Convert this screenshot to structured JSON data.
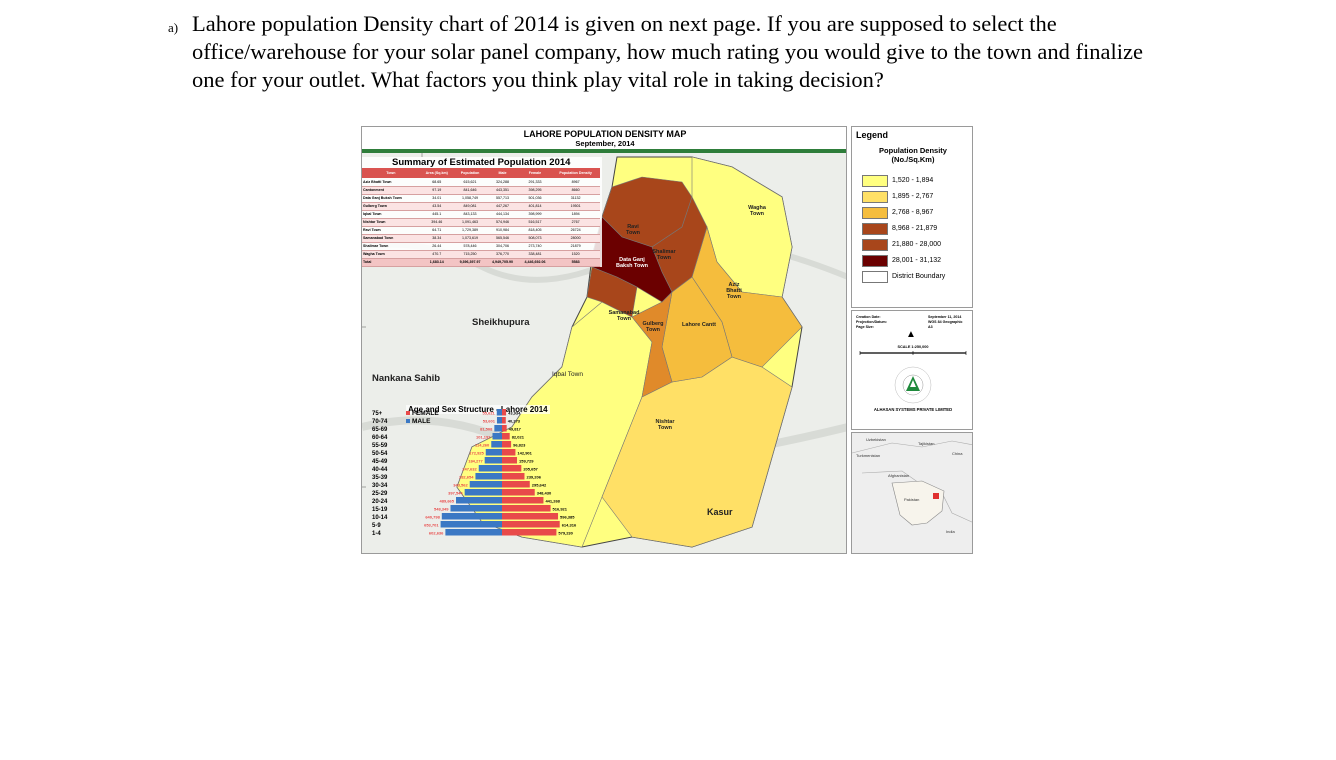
{
  "question": {
    "marker": "a)",
    "lines": [
      "Lahore population Density chart of 2014 is given on next page. If you are supposed to select the",
      "office/warehouse for your solar panel company, how much rating you would give to the town and finalize",
      "one for your outlet. What factors you think play vital role in taking decision?"
    ]
  },
  "map": {
    "title": "LAHORE POPULATION DENSITY MAP",
    "subtitle": "September, 2014",
    "districts": {
      "sheikhupura": "Sheikhupura",
      "nankana": "Nankana Sahib",
      "kasur": "Kasur"
    },
    "towns": {
      "ravi": "Ravi Town",
      "shalimar": "Shalimar Town",
      "wagha": "Wagha Town",
      "aziz_bhatti": "Aziz Bhatti Town",
      "data_ganj": "Data Ganj Baksh Town",
      "samanabad": "Samanabad Town",
      "gulberg": "Gulberg Town",
      "cantt": "Lahore Cantt",
      "iqbal": "Iqbal Town",
      "nishtar": "Nishtar Town"
    },
    "fill_colors": {
      "c1": "#ffff80",
      "c2": "#ffe066",
      "c3": "#f5bd3d",
      "c4": "#e08a2a",
      "c5": "#a8461b",
      "c6": "#6b0000"
    }
  },
  "summary": {
    "title": "Summary of Estimated Population 2014",
    "headers": [
      "Town",
      "Area (Sq.km)",
      "Population",
      "Male",
      "Female",
      "Population Density"
    ],
    "rows": [
      [
        "Aziz Bhatti Town",
        "68.65",
        "615,621",
        "324,288",
        "291,333",
        "8967"
      ],
      [
        "Cantonment",
        "97.19",
        "841,646",
        "443,351",
        "398,295",
        "8660"
      ],
      [
        "Data Ganj Buksh Town",
        "34.01",
        "1,058,749",
        "557,713",
        "501,036",
        "31132"
      ],
      [
        "Gulberg Town",
        "43.54",
        "849,081",
        "447,267",
        "401,814",
        "19501"
      ],
      [
        "Iqbal Town",
        "445.1",
        "843,133",
        "444,134",
        "398,999",
        "1894"
      ],
      [
        "Nishtar Town",
        "394.46",
        "1,091,463",
        "574,946",
        "516,517",
        "2767"
      ],
      [
        "Ravi Town",
        "64.71",
        "1,729,389",
        "910,984",
        "818,405",
        "26724"
      ],
      [
        "Samanabad Town",
        "38.34",
        "1,073,619",
        "565,546",
        "508,073",
        "28000"
      ],
      [
        "Shalimar Town",
        "26.44",
        "578,446",
        "304,706",
        "273,740",
        "21879"
      ],
      [
        "Wagha Town",
        "470.7",
        "715,250",
        "376,770",
        "338,481",
        "1520"
      ]
    ],
    "total": [
      "Total",
      "1,683.14",
      "9,396,397.97",
      "4,949,705.90",
      "4,446,692.06",
      "5583"
    ]
  },
  "pyramid": {
    "title": "Age and Sex Structure - Lahore 2014",
    "legend_female": "FEMALE",
    "legend_male": "MALE",
    "female_color": "#e84a4a",
    "male_color": "#3b78c4",
    "groups": [
      {
        "age": "75+",
        "female": "55,621",
        "male": "43,934",
        "f": 55621,
        "m": 43934
      },
      {
        "age": "70-74",
        "female": "53,601",
        "male": "40,273",
        "f": 53601,
        "m": 40273
      },
      {
        "age": "65-69",
        "female": "81,508",
        "male": "49,817",
        "f": 81508,
        "m": 49817
      },
      {
        "age": "60-64",
        "female": "101,192",
        "male": "82,021",
        "f": 101192,
        "m": 82021
      },
      {
        "age": "55-59",
        "female": "114,260",
        "male": "96,823",
        "f": 114260,
        "m": 96823
      },
      {
        "age": "50-54",
        "female": "172,925",
        "male": "142,901",
        "f": 172925,
        "m": 142901
      },
      {
        "age": "45-49",
        "female": "184,277",
        "male": "159,729",
        "f": 184277,
        "m": 159729
      },
      {
        "age": "40-44",
        "female": "247,632",
        "male": "205,657",
        "f": 247632,
        "m": 205657
      },
      {
        "age": "35-39",
        "female": "282,654",
        "male": "239,206",
        "f": 282654,
        "m": 239206
      },
      {
        "age": "30-34",
        "female": "343,562",
        "male": "295,642",
        "f": 343562,
        "m": 295642
      },
      {
        "age": "25-29",
        "female": "397,544",
        "male": "348,430",
        "f": 397544,
        "m": 348430
      },
      {
        "age": "20-24",
        "female": "489,665",
        "male": "441,268",
        "f": 489665,
        "m": 441268
      },
      {
        "age": "15-19",
        "female": "548,349",
        "male": "516,921",
        "f": 548349,
        "m": 516921
      },
      {
        "age": "10-14",
        "female": "640,798",
        "male": "596,385",
        "f": 640798,
        "m": 596385
      },
      {
        "age": "5-9",
        "female": "653,701",
        "male": "614,316",
        "f": 653701,
        "m": 614316
      },
      {
        "age": "1-4",
        "female": "602,636",
        "male": "579,230",
        "f": 602636,
        "m": 579230
      }
    ]
  },
  "legend": {
    "title": "Legend",
    "subtitle_line1": "Population Density",
    "subtitle_line2": "(No./Sq.Km)",
    "items": [
      {
        "label": "1,520 - 1,894",
        "color": "#ffff80"
      },
      {
        "label": "1,895 - 2,767",
        "color": "#ffe066"
      },
      {
        "label": "2,768 - 8,967",
        "color": "#f5bd3d"
      },
      {
        "label": "8,968 - 21,879",
        "color": "#a8461b"
      },
      {
        "label": "21,880 - 28,000",
        "color": "#a8461b"
      },
      {
        "label": "28,001 - 31,132",
        "color": "#6b0000"
      },
      {
        "label": "District Boundary",
        "color": "#ffffff"
      }
    ]
  },
  "info": {
    "creation_label": "Creation Date:",
    "projection_label": "Projection/Datum:",
    "page_label": "Page Size:",
    "creation_value": "September 11, 2014",
    "projection_value": "WGS 84 Geographic",
    "page_value": "A3",
    "scale": "SCALE 1:250,000",
    "company": "ALHASAN SYSTEMS PRIVATE LIMITED"
  },
  "inset": {
    "labels": [
      "Uzbekistan",
      "Tajikistan",
      "Turkmenistan",
      "China",
      "Afghanistan",
      "Pakistan",
      "India"
    ]
  }
}
